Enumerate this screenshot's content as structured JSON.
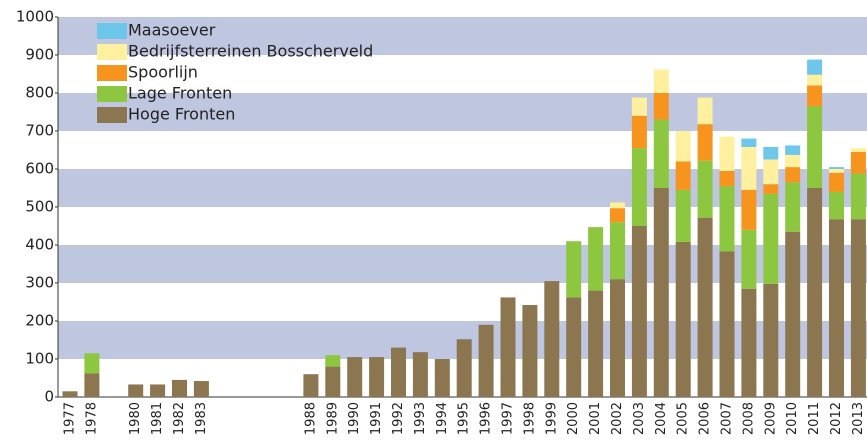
{
  "chart_data": {
    "type": "stacked-bar",
    "categories": [
      "1977",
      "1978",
      null,
      "1980",
      "1981",
      "1982",
      "1983",
      null,
      null,
      null,
      null,
      "1988",
      "1989",
      "1990",
      "1991",
      "1992",
      "1993",
      "1994",
      "1995",
      "1996",
      "1997",
      "1998",
      "1999",
      "2000",
      "2001",
      "2002",
      "2003",
      "2004",
      "2005",
      "2006",
      "2007",
      "2008",
      "2009",
      "2010",
      "2011",
      "2012",
      "2013"
    ],
    "series": [
      {
        "name": "Maasoever",
        "color": "#6ec6ea",
        "values": [
          null,
          null,
          null,
          null,
          null,
          null,
          null,
          null,
          null,
          null,
          null,
          null,
          null,
          null,
          null,
          null,
          null,
          null,
          null,
          null,
          null,
          null,
          null,
          null,
          null,
          null,
          null,
          null,
          null,
          null,
          null,
          22,
          33,
          25,
          40,
          5,
          null
        ]
      },
      {
        "name": "Bedrijfsterreinen Bosscherveld",
        "color": "#fff0a0",
        "values": [
          null,
          null,
          null,
          null,
          null,
          null,
          null,
          null,
          null,
          null,
          null,
          null,
          null,
          null,
          null,
          null,
          null,
          null,
          null,
          null,
          null,
          null,
          null,
          null,
          null,
          15,
          48,
          62,
          80,
          70,
          90,
          113,
          65,
          32,
          28,
          10,
          10
        ]
      },
      {
        "name": "Spoorlijn",
        "color": "#f7941d",
        "values": [
          null,
          null,
          null,
          null,
          null,
          null,
          null,
          null,
          null,
          null,
          null,
          null,
          null,
          null,
          null,
          null,
          null,
          null,
          null,
          null,
          null,
          null,
          null,
          null,
          null,
          37,
          85,
          70,
          75,
          96,
          40,
          105,
          25,
          40,
          55,
          50,
          57
        ]
      },
      {
        "name": "Lage Fronten",
        "color": "#8dc63f",
        "values": [
          null,
          53,
          null,
          null,
          null,
          null,
          null,
          null,
          null,
          null,
          null,
          null,
          30,
          null,
          null,
          null,
          null,
          null,
          null,
          null,
          null,
          null,
          null,
          148,
          167,
          150,
          205,
          180,
          137,
          150,
          172,
          155,
          237,
          130,
          215,
          72,
          120
        ]
      },
      {
        "name": "Hoge Fronten",
        "color": "#8c7650",
        "values": [
          15,
          62,
          null,
          33,
          33,
          45,
          42,
          null,
          null,
          null,
          null,
          60,
          80,
          105,
          105,
          130,
          118,
          100,
          152,
          190,
          262,
          242,
          305,
          262,
          280,
          310,
          450,
          550,
          408,
          472,
          383,
          285,
          298,
          435,
          550,
          468,
          468
        ]
      }
    ],
    "ylim": [
      0,
      1000
    ],
    "yticks": [
      0,
      100,
      200,
      300,
      400,
      500,
      600,
      700,
      800,
      900,
      1000
    ],
    "grid": "bands",
    "band_color": "#bfc6e0",
    "legend": "top-left"
  }
}
